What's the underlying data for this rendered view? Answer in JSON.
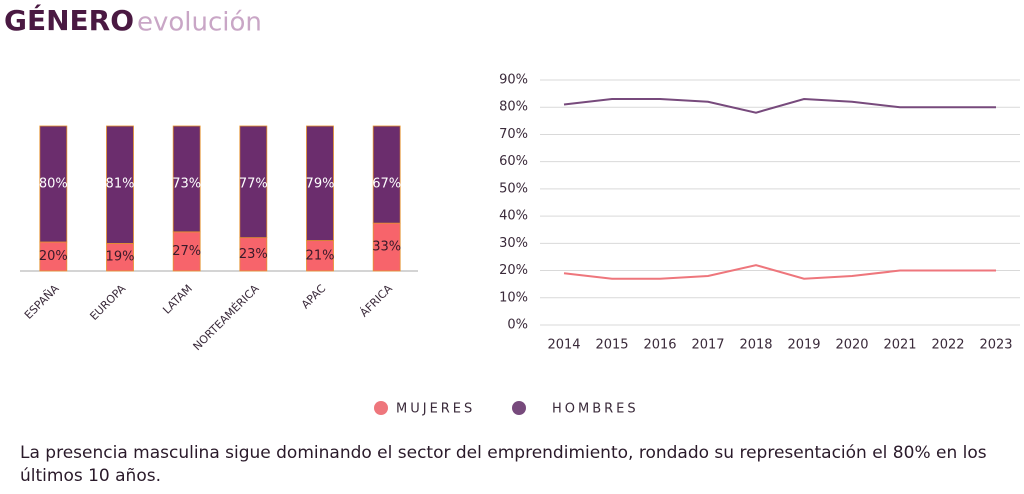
{
  "header": {
    "title": "GÉNERO",
    "subtitle": "evolución"
  },
  "chart_data": [
    {
      "type": "bar",
      "stacked": true,
      "categories": [
        "ESPAÑA",
        "EUROPA",
        "LATAM",
        "NORTEAMÉRICA",
        "APAC",
        "ÁFRICA"
      ],
      "series": [
        {
          "color": "#f7646b",
          "values": [
            20,
            19,
            27,
            23,
            21,
            33
          ],
          "value_labels": [
            "20%",
            "19%",
            "27%",
            "23%",
            "21%",
            "33%"
          ]
        },
        {
          "color": "#6b2d6d",
          "values": [
            80,
            81,
            73,
            77,
            79,
            67
          ],
          "value_labels": [
            "80%",
            "81%",
            "73%",
            "77%",
            "79%",
            "67%"
          ]
        }
      ]
    },
    {
      "type": "line",
      "x": [
        "2014",
        "2015",
        "2016",
        "2017",
        "2018",
        "2019",
        "2020",
        "2021",
        "2022",
        "2023"
      ],
      "series": [
        {
          "name": "MUJERES",
          "color": "#ee767c",
          "values": [
            19,
            17,
            17,
            18,
            22,
            17,
            18,
            20,
            20,
            20
          ]
        },
        {
          "name": "HOMBRES",
          "color": "#774a7c",
          "values": [
            81,
            83,
            83,
            82,
            78,
            83,
            82,
            80,
            80,
            80
          ]
        }
      ],
      "ylim": [
        0,
        90
      ],
      "yticks": [
        {
          "value": 0,
          "label": "0%"
        },
        {
          "value": 10,
          "label": "10%"
        },
        {
          "value": 20,
          "label": "20%"
        },
        {
          "value": 30,
          "label": "30%"
        },
        {
          "value": 40,
          "label": "40%"
        },
        {
          "value": 50,
          "label": "50%"
        },
        {
          "value": 60,
          "label": "60%"
        },
        {
          "value": 70,
          "label": "70%"
        },
        {
          "value": 80,
          "label": "80%"
        },
        {
          "value": 90,
          "label": "90%"
        }
      ],
      "grid": true
    }
  ],
  "caption": "La presencia masculina sigue dominando el sector del emprendimiento, rondado su representación el 80% en los últimos 10 años."
}
